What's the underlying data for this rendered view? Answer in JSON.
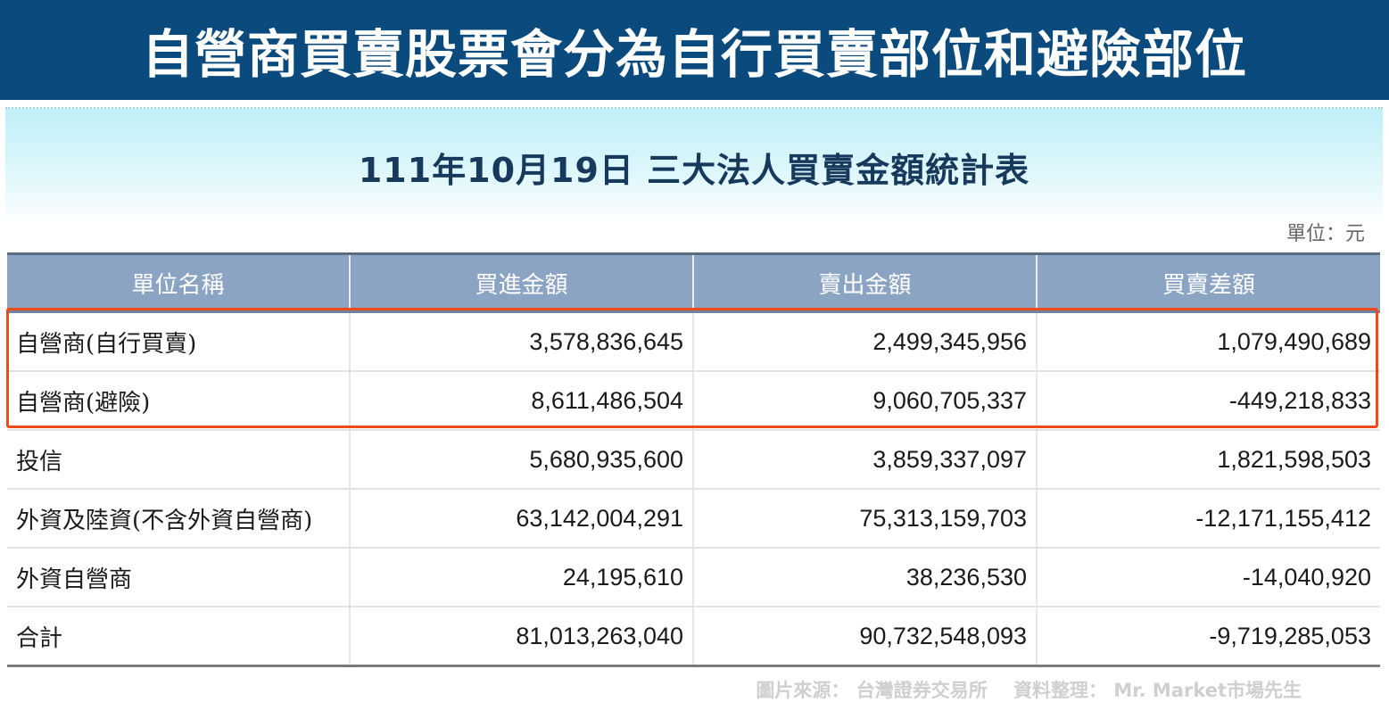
{
  "banner": {
    "title": "自營商買賣股票會分為自行買賣部位和避險部位"
  },
  "table_title": "111年10月19日 三大法人買賣金額統計表",
  "unit_label": "單位：元",
  "columns": [
    "單位名稱",
    "買進金額",
    "賣出金額",
    "買賣差額"
  ],
  "rows": [
    {
      "name": "自營商(自行買賣)",
      "buy": "3,578,836,645",
      "sell": "2,499,345,956",
      "diff": "1,079,490,689"
    },
    {
      "name": "自營商(避險)",
      "buy": "8,611,486,504",
      "sell": "9,060,705,337",
      "diff": "-449,218,833"
    },
    {
      "name": "投信",
      "buy": "5,680,935,600",
      "sell": "3,859,337,097",
      "diff": "1,821,598,503"
    },
    {
      "name": "外資及陸資(不含外資自營商)",
      "buy": "63,142,004,291",
      "sell": "75,313,159,703",
      "diff": "-12,171,155,412"
    },
    {
      "name": "外資自營商",
      "buy": "24,195,610",
      "sell": "38,236,530",
      "diff": "-14,040,920"
    },
    {
      "name": "合計",
      "buy": "81,013,263,040",
      "sell": "90,732,548,093",
      "diff": "-9,719,285,053"
    }
  ],
  "footer": {
    "source": "圖片來源： 台灣證券交易所",
    "compiled": "資料整理： Mr. Market市場先生"
  },
  "colors": {
    "banner_bg": "#0b4a7c",
    "header_bg": "#8ca4c4",
    "highlight_border": "#f04a16"
  }
}
